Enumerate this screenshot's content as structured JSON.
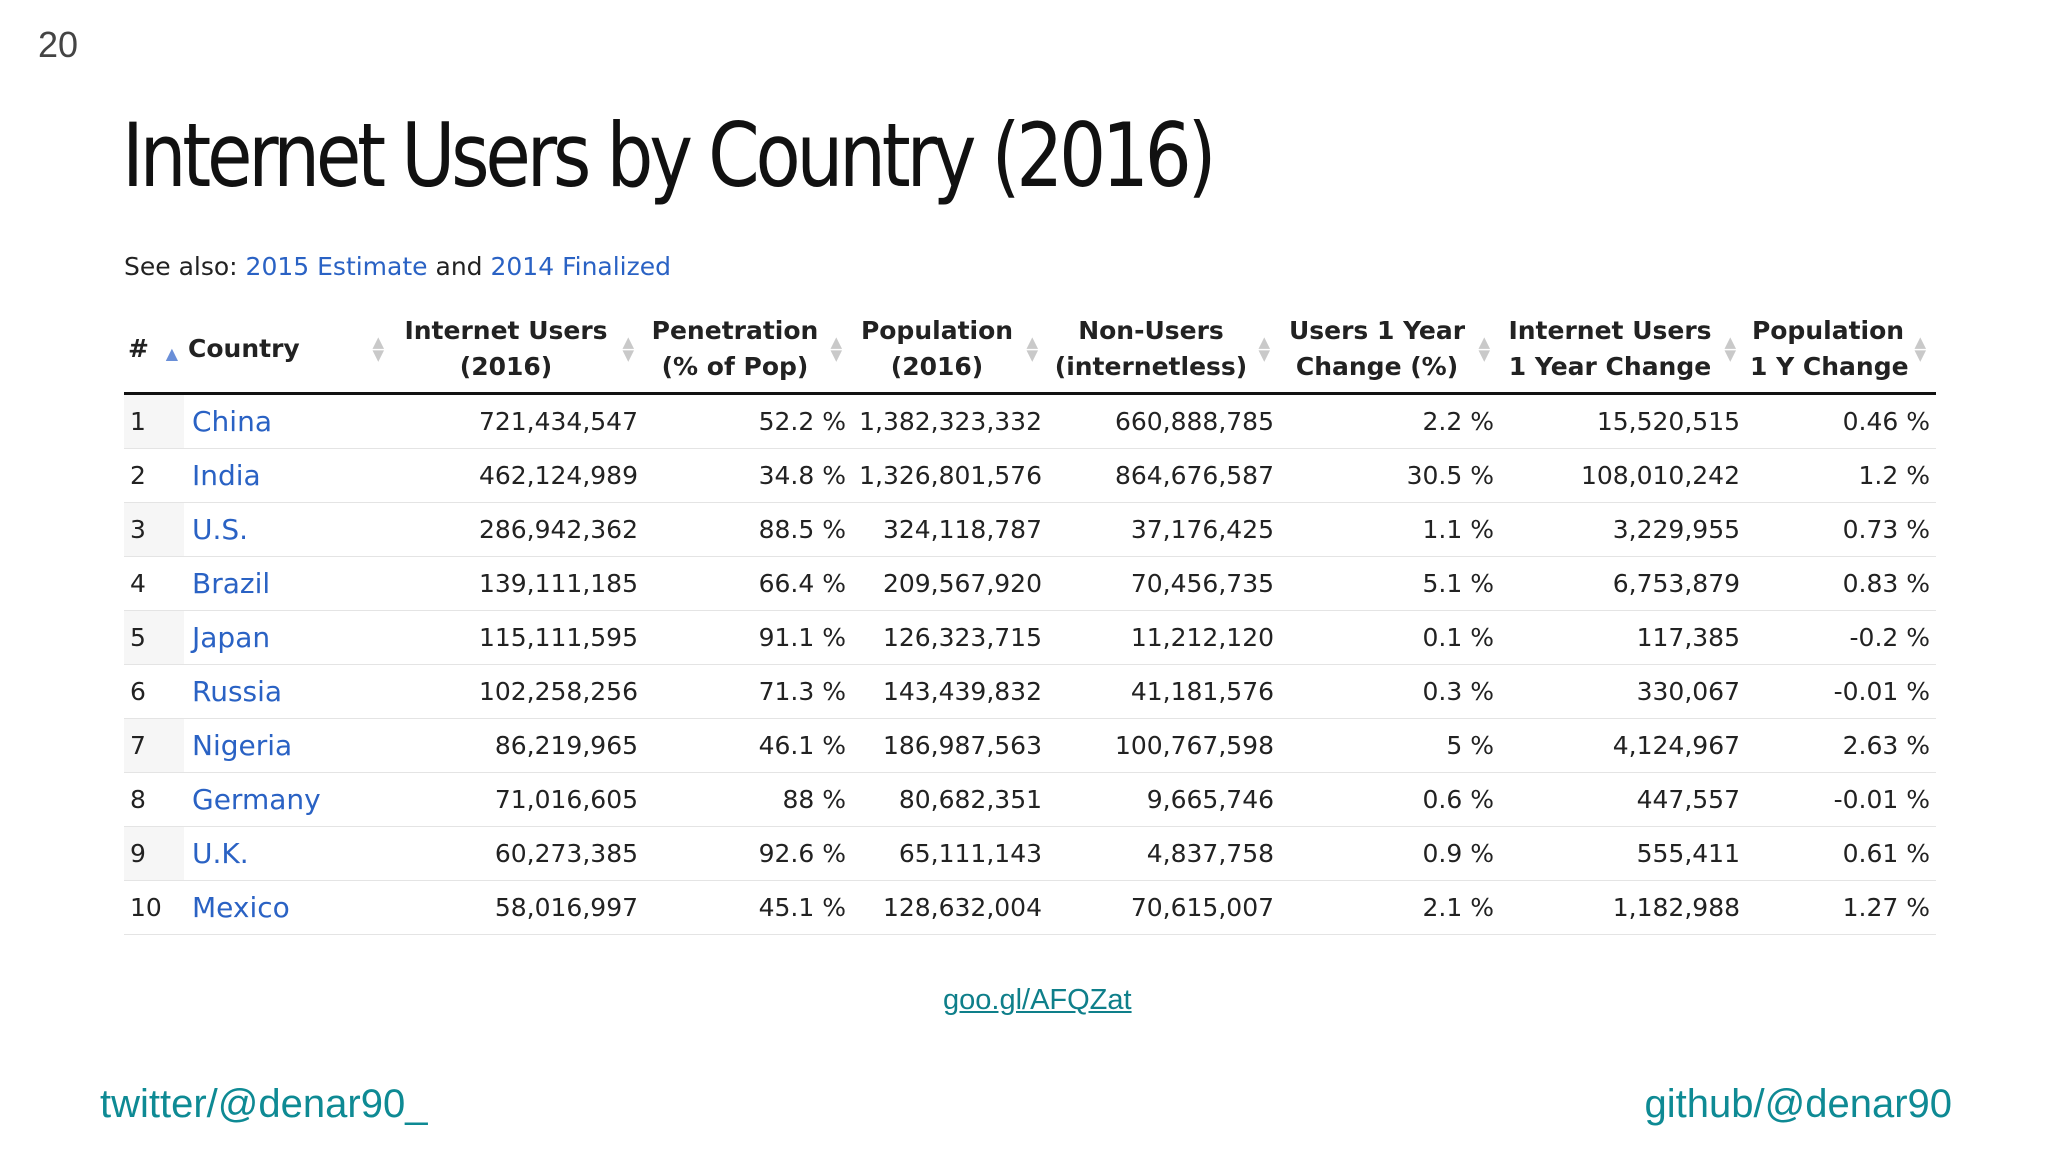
{
  "slide": {
    "number": "20"
  },
  "title": "Internet Users by Country (2016)",
  "see_also": {
    "prefix": "See also:",
    "link1": "2015 Estimate",
    "conjunction": "and",
    "link2": "2014 Finalized"
  },
  "table": {
    "headers": {
      "rank": "#",
      "country": "Country",
      "users_l1": "Internet Users",
      "users_l2": "(2016)",
      "penetration_l1": "Penetration",
      "penetration_l2": "(% of Pop)",
      "population_l1": "Population",
      "population_l2": "(2016)",
      "nonusers_l1": "Non-Users",
      "nonusers_l2": "(internetless)",
      "change_pct_l1": "Users 1 Year",
      "change_pct_l2": "Change (%)",
      "change_abs_l1": "Internet Users",
      "change_abs_l2": "1 Year Change",
      "pop_change_l1": "Population",
      "pop_change_l2": "1 Y Change"
    },
    "rows": [
      [
        "1",
        "China",
        "721,434,547",
        "52.2 %",
        "1,382,323,332",
        "660,888,785",
        "2.2 %",
        "15,520,515",
        "0.46 %"
      ],
      [
        "2",
        "India",
        "462,124,989",
        "34.8 %",
        "1,326,801,576",
        "864,676,587",
        "30.5 %",
        "108,010,242",
        "1.2 %"
      ],
      [
        "3",
        "U.S.",
        "286,942,362",
        "88.5 %",
        "324,118,787",
        "37,176,425",
        "1.1 %",
        "3,229,955",
        "0.73 %"
      ],
      [
        "4",
        "Brazil",
        "139,111,185",
        "66.4 %",
        "209,567,920",
        "70,456,735",
        "5.1 %",
        "6,753,879",
        "0.83 %"
      ],
      [
        "5",
        "Japan",
        "115,111,595",
        "91.1 %",
        "126,323,715",
        "11,212,120",
        "0.1 %",
        "117,385",
        "-0.2 %"
      ],
      [
        "6",
        "Russia",
        "102,258,256",
        "71.3 %",
        "143,439,832",
        "41,181,576",
        "0.3 %",
        "330,067",
        "-0.01 %"
      ],
      [
        "7",
        "Nigeria",
        "86,219,965",
        "46.1 %",
        "186,987,563",
        "100,767,598",
        "5 %",
        "4,124,967",
        "2.63 %"
      ],
      [
        "8",
        "Germany",
        "71,016,605",
        "88 %",
        "80,682,351",
        "9,665,746",
        "0.6 %",
        "447,557",
        "-0.01 %"
      ],
      [
        "9",
        "U.K.",
        "60,273,385",
        "92.6 %",
        "65,111,143",
        "4,837,758",
        "0.9 %",
        "555,411",
        "0.61 %"
      ],
      [
        "10",
        "Mexico",
        "58,016,997",
        "45.1 %",
        "128,632,004",
        "70,615,007",
        "2.1 %",
        "1,182,988",
        "1.27 %"
      ]
    ]
  },
  "link": "goo.gl/AFQZat",
  "footer": {
    "left": "twitter/@denar90_",
    "right": "github/@denar90"
  },
  "colors": {
    "link_blue": "#2a62c4",
    "footer_teal": "#0e8a94"
  }
}
